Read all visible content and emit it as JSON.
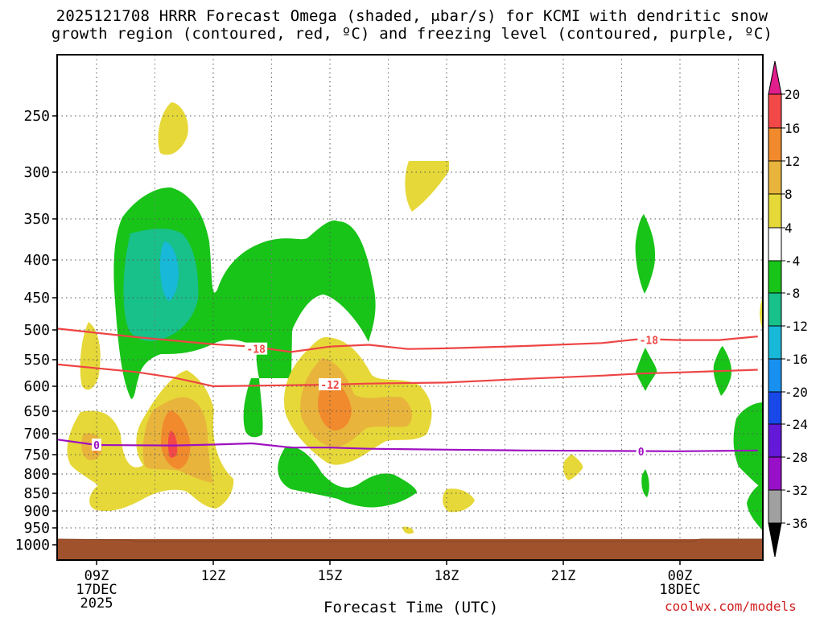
{
  "title_line1": "2025121708 HRRR Forecast Omega (shaded, μbar/s) for KCMI with dendritic snow",
  "title_line2": "growth region (contoured, red, ºC) and freezing level (contoured, purple, ºC)",
  "credit": "coolwx.com/models",
  "chart_data": {
    "type": "time-height cross section",
    "title": "2025121708 HRRR Forecast Omega (shaded, μbar/s) for KCMI with dendritic snow growth region (contoured, red, ºC) and freezing level (contoured, purple, ºC)",
    "xlabel": "Forecast Time (UTC)",
    "ylabel": "",
    "x_ticks": [
      {
        "hour": 9,
        "label": "09Z",
        "date": "17DEC",
        "year": "2025"
      },
      {
        "hour": 12,
        "label": "12Z"
      },
      {
        "hour": 15,
        "label": "15Z"
      },
      {
        "hour": 18,
        "label": "18Z"
      },
      {
        "hour": 21,
        "label": "21Z"
      },
      {
        "hour": 24,
        "label": "00Z",
        "date": "18DEC"
      }
    ],
    "xlim_hours": [
      8,
      26
    ],
    "y_ticks": [
      250,
      300,
      350,
      400,
      450,
      500,
      550,
      600,
      650,
      700,
      750,
      800,
      850,
      900,
      950,
      1000
    ],
    "ylim_hpa": [
      200,
      1025
    ],
    "colorbar": {
      "labels": [
        "20",
        "16",
        "12",
        "8",
        "4",
        "-4",
        "-8",
        "-12",
        "-16",
        "-20",
        "-24",
        "-28",
        "-32",
        "-36"
      ],
      "colors": [
        "#e01e8c",
        "#f24848",
        "#f08a2c",
        "#e8b43c",
        "#e6d838",
        "#ffffff",
        "#18c418",
        "#18c08a",
        "#18b8d8",
        "#1890f0",
        "#1848e8",
        "#6418d8",
        "#9810c8",
        "#a0a0a0",
        "#000000"
      ]
    },
    "contours": [
      {
        "name": "dendritic-minus18",
        "label": "-18",
        "color": "#ee4444",
        "points": [
          [
            8,
            498
          ],
          [
            10,
            512
          ],
          [
            12,
            524
          ],
          [
            13,
            528
          ],
          [
            14,
            537
          ],
          [
            15,
            528
          ],
          [
            16,
            525
          ],
          [
            17,
            532
          ],
          [
            18,
            531
          ],
          [
            20,
            527
          ],
          [
            22,
            522
          ],
          [
            23,
            515
          ],
          [
            24,
            517
          ],
          [
            25,
            517
          ],
          [
            26,
            511
          ]
        ]
      },
      {
        "name": "dendritic-minus12",
        "label": "-12",
        "color": "#ee4444",
        "points": [
          [
            8,
            559
          ],
          [
            10,
            573
          ],
          [
            11,
            584
          ],
          [
            12,
            600
          ],
          [
            14,
            598
          ],
          [
            15,
            597
          ],
          [
            16,
            595
          ],
          [
            18,
            593
          ],
          [
            20,
            586
          ],
          [
            22,
            580
          ],
          [
            23,
            576
          ],
          [
            24,
            574
          ],
          [
            26,
            569
          ]
        ]
      },
      {
        "name": "freezing-level",
        "label": "0",
        "color": "#9e10c0",
        "points": [
          [
            8,
            714
          ],
          [
            9,
            727
          ],
          [
            11,
            728
          ],
          [
            12,
            726
          ],
          [
            13,
            723
          ],
          [
            14,
            733
          ],
          [
            15,
            733
          ],
          [
            16,
            736
          ],
          [
            18,
            738
          ],
          [
            20,
            740
          ],
          [
            22,
            741
          ],
          [
            24,
            742
          ],
          [
            26,
            740
          ]
        ]
      }
    ],
    "contour_labels": [
      {
        "text": "-18",
        "hour": 13.1,
        "hpa": 532
      },
      {
        "text": "-18",
        "hour": 23.2,
        "hpa": 517
      },
      {
        "text": "-12",
        "hour": 15.0,
        "hpa": 597
      },
      {
        "text": "0",
        "hour": 9.0,
        "hpa": 727
      },
      {
        "text": "0",
        "hour": 23.0,
        "hpa": 742
      }
    ]
  }
}
